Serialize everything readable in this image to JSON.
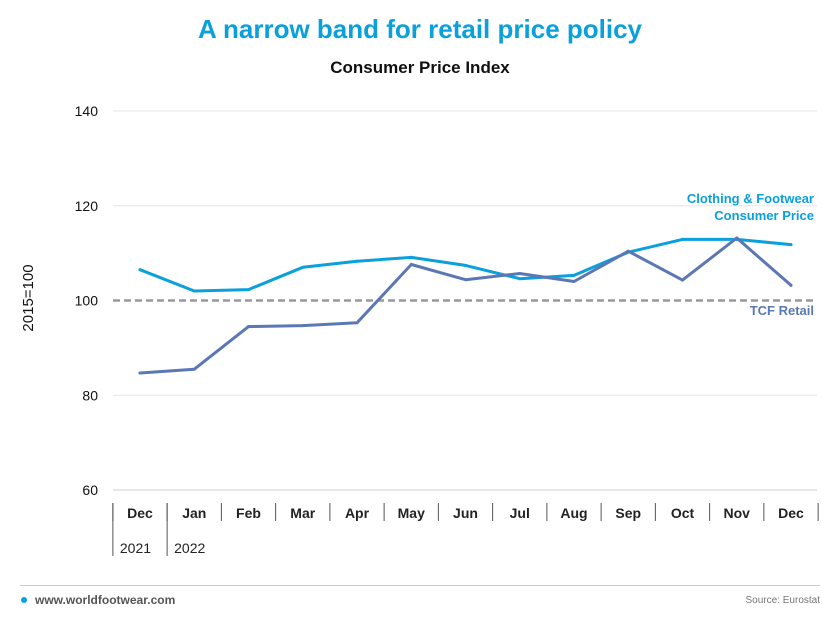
{
  "page": {
    "title": "A narrow band for retail price policy",
    "subtitle": "Consumer Price Index",
    "website": "www.worldfootwear.com",
    "source": "Source: Eurostat"
  },
  "chart_data": {
    "type": "line",
    "title": "A narrow band for retail price policy",
    "subtitle": "Consumer Price Index",
    "xlabel": "",
    "ylabel": "2015=100",
    "categories": [
      "Dec",
      "Jan",
      "Feb",
      "Mar",
      "Apr",
      "May",
      "Jun",
      "Jul",
      "Aug",
      "Sep",
      "Oct",
      "Nov",
      "Dec"
    ],
    "year_labels": [
      {
        "label": "2021",
        "start_index": 0
      },
      {
        "label": "2022",
        "start_index": 1
      }
    ],
    "ylim": [
      60,
      140
    ],
    "yticks": [
      60,
      80,
      100,
      120,
      140
    ],
    "grid": true,
    "reference_line": {
      "value": 100,
      "style": "dashed",
      "color": "#999999"
    },
    "series": [
      {
        "name": "Clothing & Footwear Consumer Price",
        "label_lines": [
          "Clothing & Footwear",
          "Consumer Price"
        ],
        "color": "#0aa0dc",
        "values": [
          106.5,
          102.0,
          102.3,
          107.0,
          108.3,
          109.1,
          107.4,
          104.6,
          105.3,
          110.2,
          112.9,
          112.9,
          111.8
        ]
      },
      {
        "name": "TCF Retail",
        "label_lines": [
          "TCF Retail"
        ],
        "color": "#5b78b4",
        "values": [
          84.7,
          85.5,
          94.5,
          94.7,
          95.3,
          107.6,
          104.4,
          105.7,
          104.0,
          110.4,
          104.3,
          113.2,
          103.2
        ]
      }
    ]
  }
}
